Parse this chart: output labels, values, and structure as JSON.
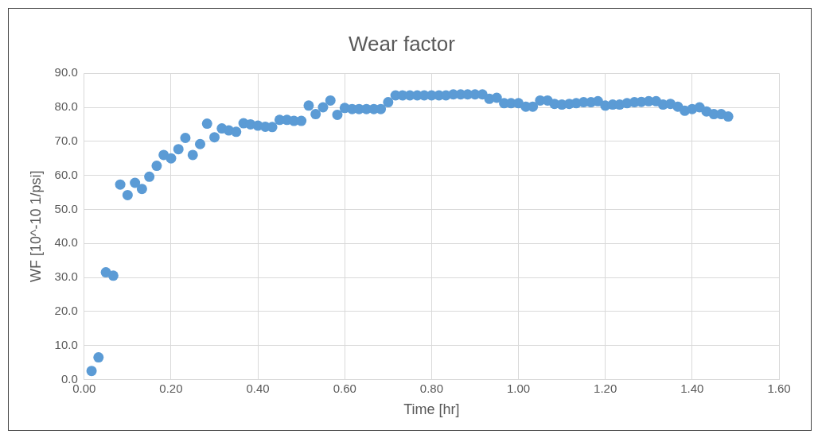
{
  "chart_data": {
    "type": "scatter",
    "title": "Wear factor",
    "xlabel": "Time [hr]",
    "ylabel": "WF [10^-10 1/psi]",
    "x": [
      0.017,
      0.033,
      0.05,
      0.067,
      0.083,
      0.1,
      0.117,
      0.133,
      0.15,
      0.167,
      0.183,
      0.2,
      0.217,
      0.233,
      0.25,
      0.267,
      0.283,
      0.3,
      0.317,
      0.333,
      0.35,
      0.367,
      0.383,
      0.4,
      0.417,
      0.433,
      0.45,
      0.467,
      0.483,
      0.5,
      0.517,
      0.533,
      0.55,
      0.567,
      0.583,
      0.6,
      0.617,
      0.633,
      0.65,
      0.667,
      0.683,
      0.7,
      0.717,
      0.733,
      0.75,
      0.767,
      0.783,
      0.8,
      0.817,
      0.833,
      0.85,
      0.867,
      0.883,
      0.9,
      0.917,
      0.933,
      0.95,
      0.967,
      0.983,
      1.0,
      1.017,
      1.033,
      1.05,
      1.067,
      1.083,
      1.1,
      1.117,
      1.133,
      1.15,
      1.167,
      1.183,
      1.2,
      1.217,
      1.233,
      1.25,
      1.267,
      1.283,
      1.3,
      1.317,
      1.333,
      1.35,
      1.367,
      1.383,
      1.4,
      1.417,
      1.433,
      1.45,
      1.467,
      1.483
    ],
    "series": [
      {
        "color": "#5b9bd5",
        "values": [
          2.5,
          6.5,
          31.5,
          30.5,
          57.3,
          54.2,
          57.8,
          56.0,
          59.6,
          62.8,
          66.0,
          65.0,
          67.7,
          71.0,
          66.0,
          69.2,
          75.2,
          71.2,
          73.8,
          73.2,
          72.8,
          75.3,
          75.0,
          74.6,
          74.3,
          74.2,
          76.3,
          76.3,
          76.0,
          76.0,
          80.5,
          78.0,
          80.0,
          82.0,
          77.8,
          79.8,
          79.5,
          79.5,
          79.5,
          79.5,
          79.5,
          81.5,
          83.5,
          83.5,
          83.5,
          83.5,
          83.5,
          83.5,
          83.5,
          83.5,
          83.8,
          83.8,
          83.8,
          83.8,
          83.8,
          82.5,
          82.8,
          81.2,
          81.2,
          81.2,
          80.2,
          80.2,
          82.0,
          82.0,
          81.0,
          80.8,
          81.0,
          81.2,
          81.5,
          81.5,
          81.8,
          80.5,
          80.8,
          80.8,
          81.2,
          81.5,
          81.6,
          81.8,
          81.8,
          80.8,
          81.0,
          80.2,
          79.0,
          79.5,
          80.0,
          78.8,
          78.0,
          78.0,
          77.3
        ]
      }
    ],
    "xlim": [
      0,
      1.6
    ],
    "xticks": [
      {
        "value": 0,
        "label": "0.00"
      },
      {
        "value": 0.2,
        "label": "0.20"
      },
      {
        "value": 0.4,
        "label": "0.40"
      },
      {
        "value": 0.6,
        "label": "0.60"
      },
      {
        "value": 0.8,
        "label": "0.80"
      },
      {
        "value": 1,
        "label": "1.00"
      },
      {
        "value": 1.2,
        "label": "1.20"
      },
      {
        "value": 1.4,
        "label": "1.40"
      },
      {
        "value": 1.6,
        "label": "1.60"
      }
    ],
    "ylim": [
      0,
      90
    ],
    "yticks": [
      {
        "value": 0,
        "label": "0.0"
      },
      {
        "value": 10,
        "label": "10.0"
      },
      {
        "value": 20,
        "label": "20.0"
      },
      {
        "value": 30,
        "label": "30.0"
      },
      {
        "value": 40,
        "label": "40.0"
      },
      {
        "value": 50,
        "label": "50.0"
      },
      {
        "value": 60,
        "label": "60.0"
      },
      {
        "value": 70,
        "label": "70.0"
      },
      {
        "value": 80,
        "label": "80.0"
      },
      {
        "value": 90,
        "label": "90.0"
      }
    ],
    "grid": true,
    "marker": "circle",
    "legend": false
  }
}
